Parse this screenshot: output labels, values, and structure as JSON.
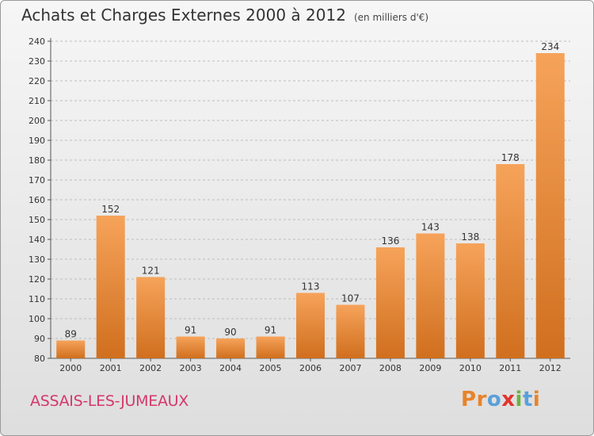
{
  "header": {
    "title": "Achats et Charges Externes 2000 à 2012",
    "unit": "(en milliers d'€)"
  },
  "footer": {
    "commune": "ASSAIS-LES-JUMEAUX",
    "logo_text": "Proxiti",
    "logo_colors": [
      "#e8832a",
      "#e8832a",
      "#5aa0d8",
      "#e2342c",
      "#6cb33f",
      "#5aa0d8",
      "#e8832a"
    ]
  },
  "colors": {
    "bar_light": "#f6a35a",
    "bar_dark": "#d06f1e",
    "commune": "#d4386a"
  },
  "chart_data": {
    "type": "bar",
    "categories": [
      "2000",
      "2001",
      "2002",
      "2003",
      "2004",
      "2005",
      "2006",
      "2007",
      "2008",
      "2009",
      "2010",
      "2011",
      "2012"
    ],
    "values": [
      89,
      152,
      121,
      91,
      90,
      91,
      113,
      107,
      136,
      143,
      138,
      178,
      234
    ],
    "ylim": [
      80,
      240
    ],
    "ytick_step": 10,
    "grid": "horizontal dashed",
    "title": "Achats et Charges Externes 2000 à 2012",
    "subtitle": "(en milliers d'€)",
    "xlabel": "",
    "ylabel": ""
  }
}
